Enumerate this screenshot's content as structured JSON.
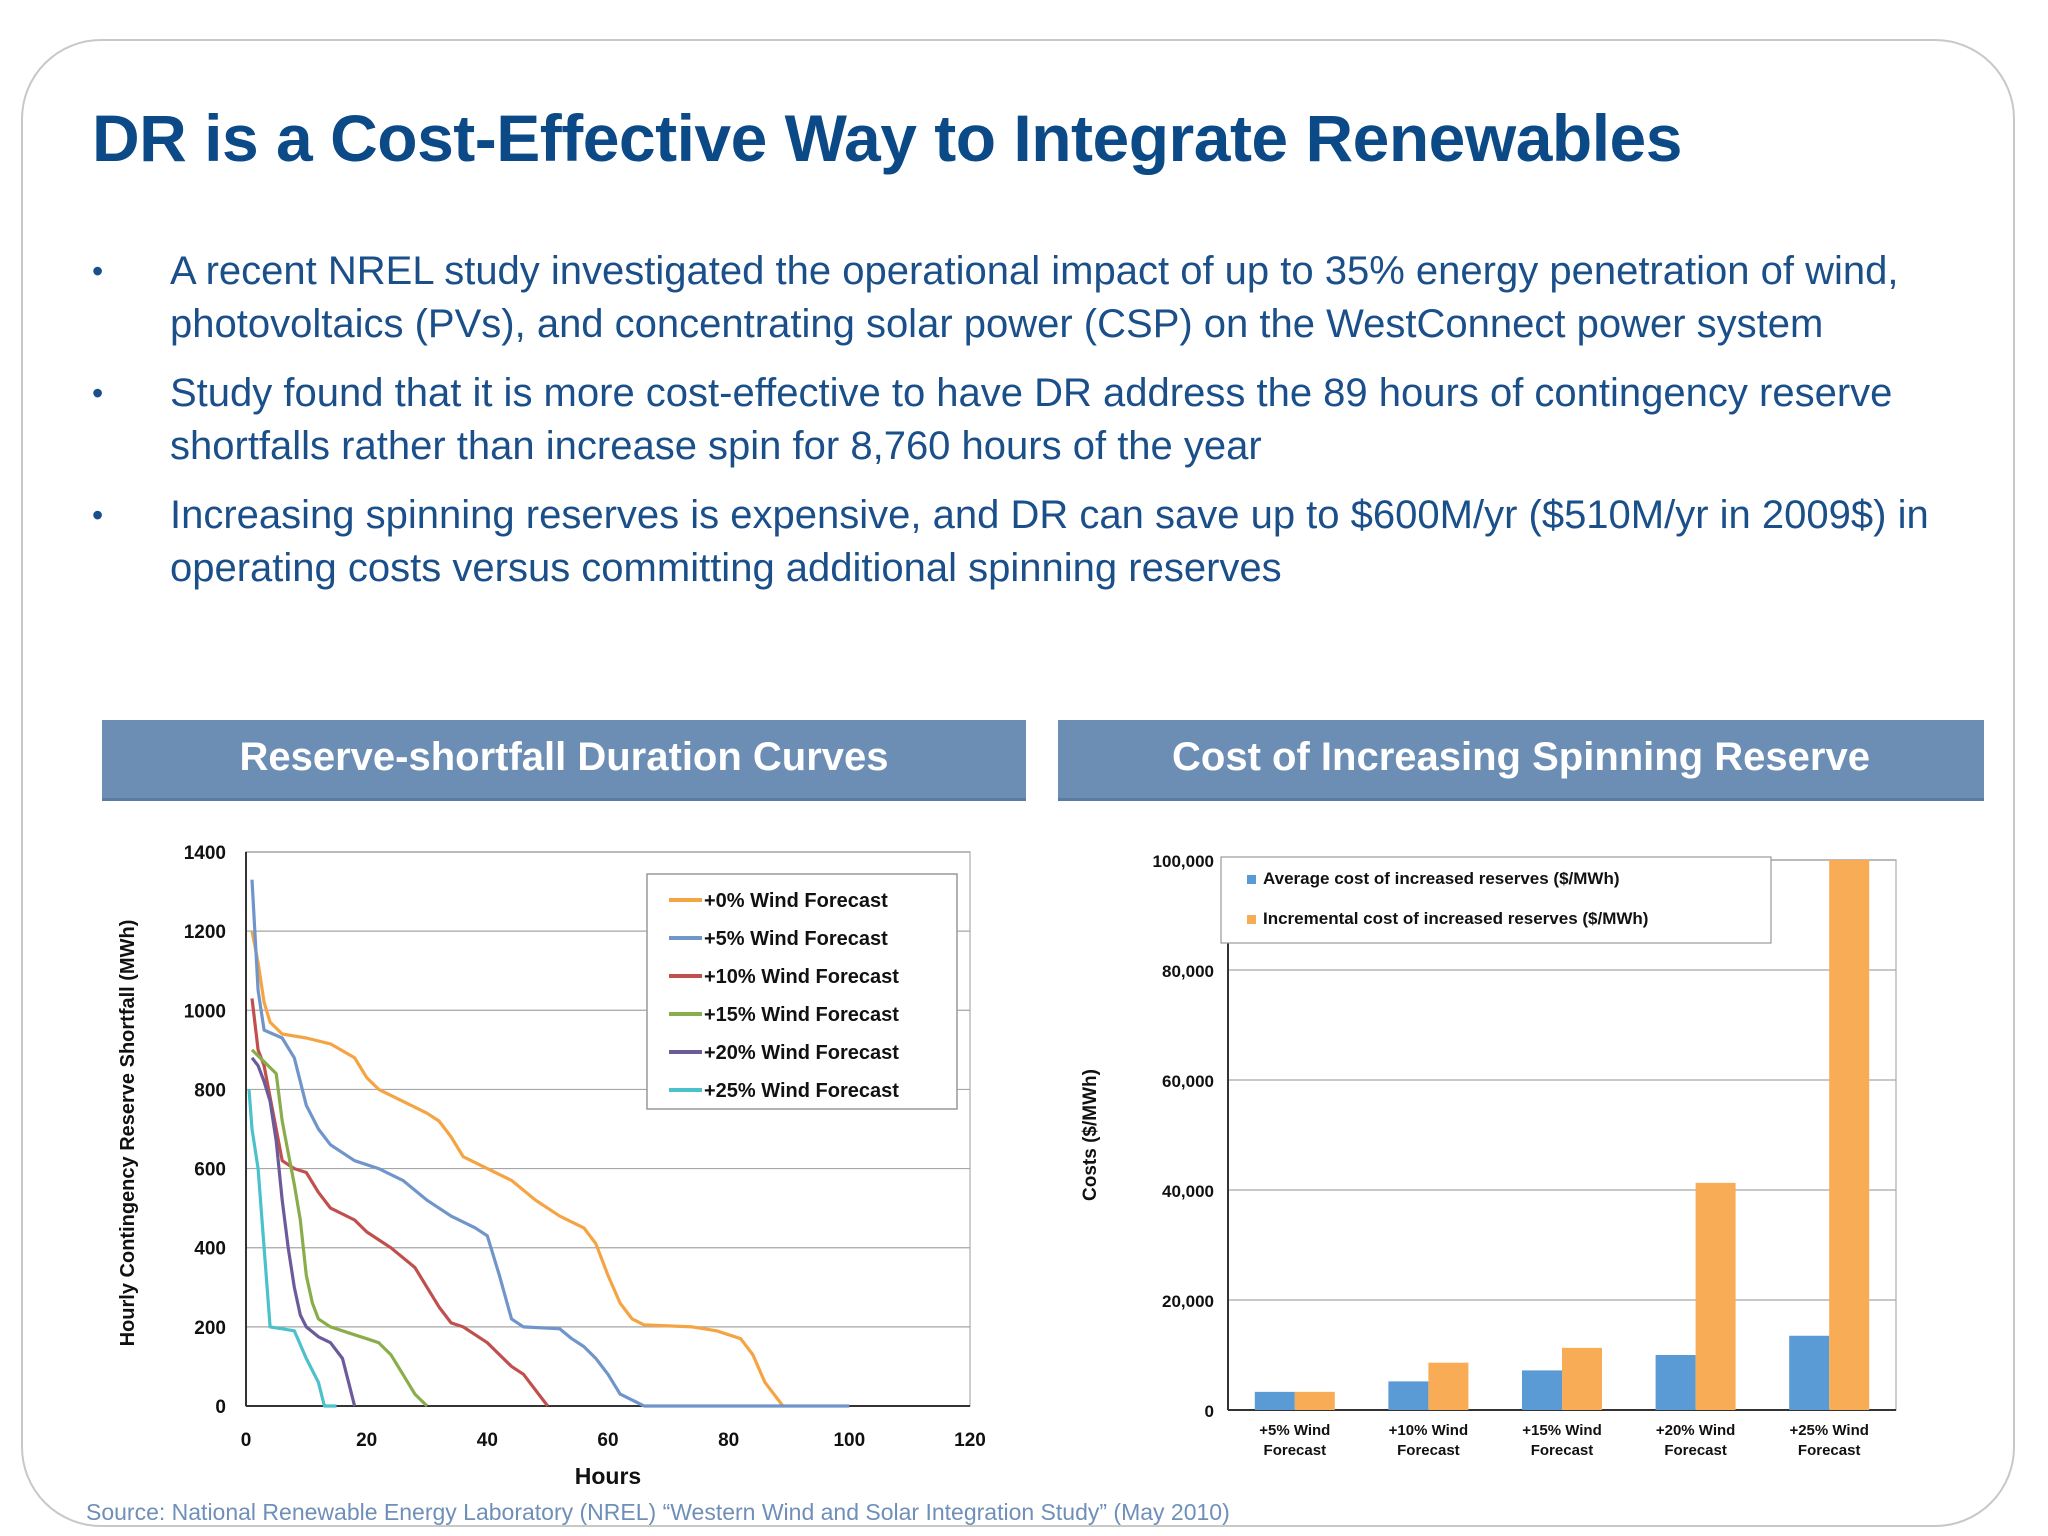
{
  "title": "DR is a Cost-Effective Way to Integrate Renewables",
  "bullets": [
    "A recent NREL study investigated the operational impact of up to 35% energy penetration of wind, photovoltaics (PVs), and concentrating solar power (CSP) on the WestConnect power system",
    "Study found that it is more cost-effective to have DR address the 89 hours of contingency reserve shortfalls rather than increase spin for 8,760 hours of the year",
    "Increasing spinning reserves is expensive, and DR can save up to $600M/yr ($510M/yr in 2009$) in operating costs versus committing additional spinning reserves"
  ],
  "bullet_symbol": "•",
  "panels": {
    "left_header": "Reserve-shortfall Duration Curves",
    "right_header": "Cost of Increasing Spinning Reserve"
  },
  "source": "Source: National Renewable Energy Laboratory (NREL) “Western Wind and Solar Integration Study” (May 2010)",
  "chart_data": [
    {
      "type": "line",
      "xlabel": "Hours",
      "ylabel": "Hourly Contingency Reserve Shortfall (MWh)",
      "xlim": [
        0,
        120
      ],
      "ylim": [
        0,
        1400
      ],
      "xticks": [
        0,
        20,
        40,
        60,
        80,
        100,
        120
      ],
      "yticks": [
        0,
        200,
        400,
        600,
        800,
        1000,
        1200,
        1400
      ],
      "grid": "horizontal",
      "legend_position": "top-right",
      "series": [
        {
          "name": "+0% Wind Forecast",
          "color": "#f5a444",
          "points": [
            [
              1,
              1200
            ],
            [
              2,
              1120
            ],
            [
              3,
              1020
            ],
            [
              4,
              970
            ],
            [
              6,
              940
            ],
            [
              10,
              930
            ],
            [
              14,
              915
            ],
            [
              18,
              880
            ],
            [
              20,
              830
            ],
            [
              22,
              800
            ],
            [
              26,
              770
            ],
            [
              30,
              740
            ],
            [
              32,
              720
            ],
            [
              34,
              680
            ],
            [
              36,
              630
            ],
            [
              40,
              600
            ],
            [
              44,
              570
            ],
            [
              48,
              520
            ],
            [
              52,
              480
            ],
            [
              56,
              450
            ],
            [
              58,
              410
            ],
            [
              60,
              330
            ],
            [
              62,
              260
            ],
            [
              64,
              220
            ],
            [
              66,
              205
            ],
            [
              74,
              200
            ],
            [
              78,
              190
            ],
            [
              82,
              170
            ],
            [
              84,
              130
            ],
            [
              86,
              60
            ],
            [
              88,
              20
            ],
            [
              89,
              0
            ]
          ]
        },
        {
          "name": "+5% Wind Forecast",
          "color": "#6f95cb",
          "points": [
            [
              1,
              1330
            ],
            [
              2,
              1050
            ],
            [
              3,
              950
            ],
            [
              6,
              930
            ],
            [
              8,
              880
            ],
            [
              10,
              760
            ],
            [
              12,
              700
            ],
            [
              14,
              660
            ],
            [
              18,
              620
            ],
            [
              22,
              600
            ],
            [
              26,
              570
            ],
            [
              30,
              520
            ],
            [
              34,
              480
            ],
            [
              38,
              450
            ],
            [
              40,
              430
            ],
            [
              42,
              330
            ],
            [
              44,
              220
            ],
            [
              46,
              200
            ],
            [
              52,
              195
            ],
            [
              54,
              170
            ],
            [
              56,
              150
            ],
            [
              58,
              120
            ],
            [
              60,
              80
            ],
            [
              62,
              30
            ],
            [
              66,
              0
            ],
            [
              100,
              0
            ]
          ]
        },
        {
          "name": "+10% Wind Forecast",
          "color": "#c0504d",
          "points": [
            [
              1,
              1030
            ],
            [
              2,
              900
            ],
            [
              3,
              860
            ],
            [
              4,
              780
            ],
            [
              5,
              700
            ],
            [
              6,
              620
            ],
            [
              8,
              600
            ],
            [
              10,
              590
            ],
            [
              12,
              540
            ],
            [
              14,
              500
            ],
            [
              18,
              470
            ],
            [
              20,
              440
            ],
            [
              24,
              400
            ],
            [
              28,
              350
            ],
            [
              30,
              300
            ],
            [
              32,
              250
            ],
            [
              34,
              210
            ],
            [
              36,
              200
            ],
            [
              38,
              180
            ],
            [
              40,
              160
            ],
            [
              42,
              130
            ],
            [
              44,
              100
            ],
            [
              46,
              80
            ],
            [
              48,
              40
            ],
            [
              50,
              0
            ]
          ]
        },
        {
          "name": "+15% Wind Forecast",
          "color": "#8aad4b",
          "points": [
            [
              1,
              900
            ],
            [
              3,
              870
            ],
            [
              5,
              840
            ],
            [
              6,
              720
            ],
            [
              7,
              640
            ],
            [
              8,
              560
            ],
            [
              9,
              470
            ],
            [
              10,
              330
            ],
            [
              11,
              260
            ],
            [
              12,
              220
            ],
            [
              14,
              200
            ],
            [
              18,
              180
            ],
            [
              20,
              170
            ],
            [
              22,
              160
            ],
            [
              24,
              130
            ],
            [
              26,
              80
            ],
            [
              28,
              30
            ],
            [
              30,
              0
            ]
          ]
        },
        {
          "name": "+20% Wind Forecast",
          "color": "#6b5b9a",
          "points": [
            [
              1,
              880
            ],
            [
              2,
              860
            ],
            [
              3,
              820
            ],
            [
              4,
              770
            ],
            [
              5,
              670
            ],
            [
              6,
              520
            ],
            [
              7,
              400
            ],
            [
              8,
              300
            ],
            [
              9,
              230
            ],
            [
              10,
              200
            ],
            [
              12,
              175
            ],
            [
              14,
              160
            ],
            [
              16,
              120
            ],
            [
              17,
              60
            ],
            [
              18,
              0
            ]
          ]
        },
        {
          "name": "+25% Wind Forecast",
          "color": "#4bc1cc",
          "points": [
            [
              0.5,
              800
            ],
            [
              1,
              700
            ],
            [
              2,
              600
            ],
            [
              3,
              400
            ],
            [
              4,
              200
            ],
            [
              6,
              195
            ],
            [
              8,
              190
            ],
            [
              10,
              120
            ],
            [
              12,
              60
            ],
            [
              13,
              0
            ],
            [
              15,
              0
            ]
          ]
        }
      ]
    },
    {
      "type": "bar",
      "ylabel": "Costs ($/MWh)",
      "ylim": [
        0,
        100000
      ],
      "yticks": [
        "0",
        "20,000",
        "40,000",
        "60,000",
        "80,000",
        "100,000"
      ],
      "ytick_values": [
        0,
        20000,
        40000,
        60000,
        80000,
        100000
      ],
      "grid": "horizontal",
      "legend_position": "top-left",
      "categories": [
        "+5% Wind Forecast",
        "+10% Wind Forecast",
        "+15% Wind Forecast",
        "+20% Wind Forecast",
        "+25% Wind Forecast"
      ],
      "category_lines": [
        [
          "+5% Wind",
          "Forecast"
        ],
        [
          "+10% Wind",
          "Forecast"
        ],
        [
          "+15% Wind",
          "Forecast"
        ],
        [
          "+20% Wind",
          "Forecast"
        ],
        [
          "+25% Wind",
          "Forecast"
        ]
      ],
      "series": [
        {
          "name": "Average cost of increased reserves ($/MWh)",
          "color": "#5b9bd5",
          "values": [
            3300,
            5200,
            7200,
            10000,
            13500
          ]
        },
        {
          "name": "Incremental cost of increased reserves ($/MWh)",
          "color": "#f7ac55",
          "values": [
            3300,
            8600,
            11300,
            41300,
            100000
          ]
        }
      ]
    }
  ]
}
